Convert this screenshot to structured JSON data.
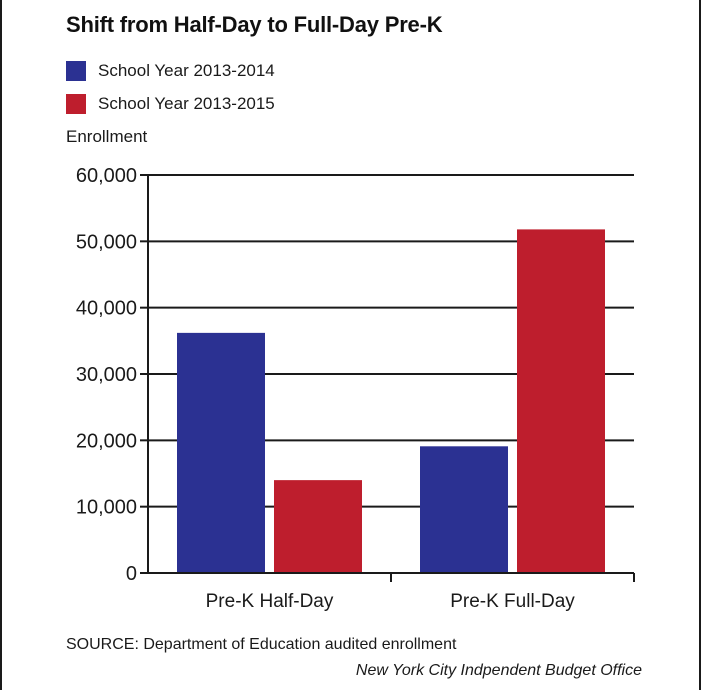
{
  "chart_data": {
    "type": "bar",
    "title": "Shift from Half-Day to Full-Day Pre-K",
    "ylabel": "Enrollment",
    "xlabel": "",
    "categories": [
      "Pre-K Half-Day",
      "Pre-K Full-Day"
    ],
    "series": [
      {
        "name": "School Year 2013-2014",
        "color": "#2b3192",
        "values": [
          36200,
          19100
        ]
      },
      {
        "name": "School Year 2013-2015",
        "color": "#be1e2d",
        "values": [
          14000,
          51800
        ]
      }
    ],
    "ylim": [
      0,
      60000
    ],
    "yticks": [
      0,
      10000,
      20000,
      30000,
      40000,
      50000,
      60000
    ],
    "ytick_labels": [
      "0",
      "10,000",
      "20,000",
      "30,000",
      "40,000",
      "50,000",
      "60,000"
    ],
    "grid": true,
    "legend_position": "top-left"
  },
  "source_note": "SOURCE: Department of Education audited enrollment",
  "credit": "New York City Indpendent Budget Office"
}
